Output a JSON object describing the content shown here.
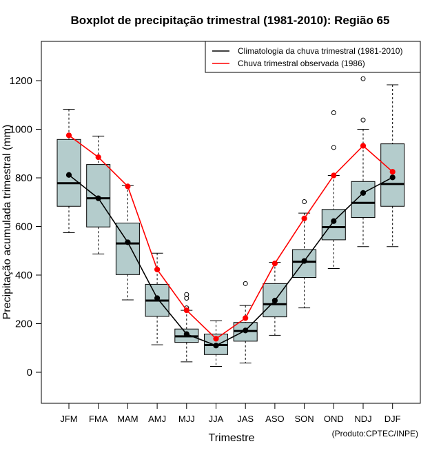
{
  "chart_data": {
    "type": "boxplot",
    "title": "Boxplot de precipitação trimestral (1981-2010): Região 65",
    "xlabel": "Trimestre",
    "ylabel": "Precipitação acumulada trimestral (mm)",
    "ylim": [
      -130,
      1360
    ],
    "yticks": [
      0,
      200,
      400,
      600,
      800,
      1000,
      1200
    ],
    "grid": false,
    "legend_position": "top-right",
    "credit": "(Produto:CPTEC/INPE)",
    "categories": [
      "JFM",
      "FMA",
      "MAM",
      "AMJ",
      "MJJ",
      "JJA",
      "JAS",
      "ASO",
      "SON",
      "OND",
      "NDJ",
      "DJF"
    ],
    "boxes": [
      {
        "whisker_low": 575,
        "q1": 683,
        "median": 778,
        "q3": 958,
        "whisker_high": 1082,
        "outliers": []
      },
      {
        "whisker_low": 487,
        "q1": 598,
        "median": 716,
        "q3": 855,
        "whisker_high": 972,
        "outliers": []
      },
      {
        "whisker_low": 298,
        "q1": 402,
        "median": 530,
        "q3": 614,
        "whisker_high": 768,
        "outliers": []
      },
      {
        "whisker_low": 113,
        "q1": 230,
        "median": 295,
        "q3": 362,
        "whisker_high": 490,
        "outliers": []
      },
      {
        "whisker_low": 43,
        "q1": 123,
        "median": 148,
        "q3": 178,
        "whisker_high": 255,
        "outliers": [
          265,
          305,
          320
        ]
      },
      {
        "whisker_low": 24,
        "q1": 73,
        "median": 112,
        "q3": 157,
        "whisker_high": 212,
        "outliers": []
      },
      {
        "whisker_low": 38,
        "q1": 128,
        "median": 170,
        "q3": 205,
        "whisker_high": 275,
        "outliers": [
          365
        ]
      },
      {
        "whisker_low": 152,
        "q1": 228,
        "median": 280,
        "q3": 365,
        "whisker_high": 452,
        "outliers": []
      },
      {
        "whisker_low": 265,
        "q1": 390,
        "median": 455,
        "q3": 505,
        "whisker_high": 655,
        "outliers": [
          702
        ]
      },
      {
        "whisker_low": 427,
        "q1": 545,
        "median": 597,
        "q3": 670,
        "whisker_high": 810,
        "outliers": [
          925,
          1068
        ]
      },
      {
        "whisker_low": 517,
        "q1": 637,
        "median": 697,
        "q3": 785,
        "whisker_high": 1000,
        "outliers": [
          1038,
          1208
        ]
      },
      {
        "whisker_low": 517,
        "q1": 683,
        "median": 775,
        "q3": 940,
        "whisker_high": 1183,
        "outliers": []
      }
    ],
    "series": [
      {
        "name": "Climatologia da chuva trimestral (1981-2010)",
        "color": "#000000",
        "values": [
          812,
          716,
          535,
          305,
          157,
          110,
          172,
          295,
          458,
          622,
          738,
          802
        ]
      },
      {
        "name": "Chuva trimestral observada (1986)",
        "color": "#ff0000",
        "values": [
          975,
          885,
          765,
          423,
          255,
          138,
          223,
          448,
          633,
          810,
          932,
          825
        ]
      }
    ],
    "box_fill": "#b4cccc"
  }
}
